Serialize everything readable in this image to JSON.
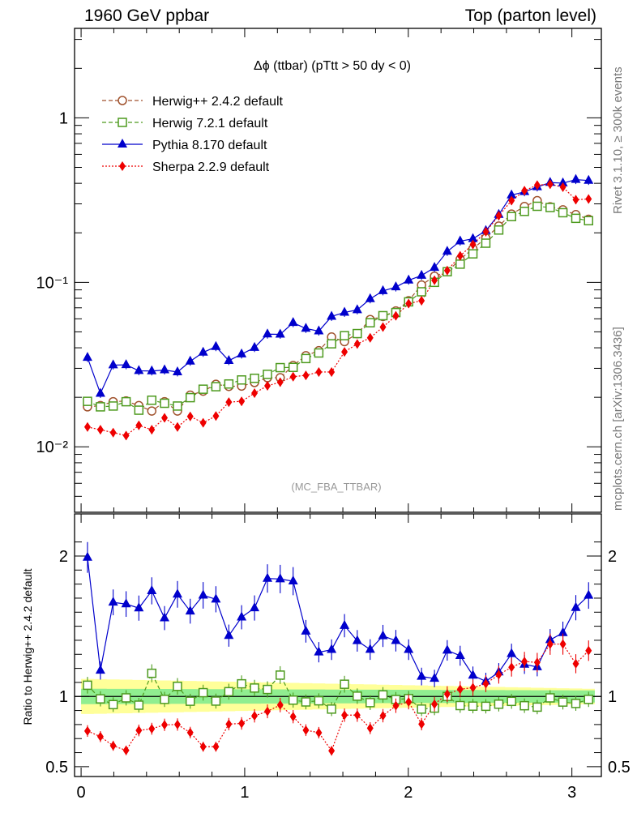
{
  "header": {
    "left": "1960 GeV ppbar",
    "right": "Top (parton level)"
  },
  "side_labels": {
    "rivet": "Rivet 3.1.10, ≥ 300k events",
    "mcplots": "mcplots.cern.ch [arXiv:1306.3436]"
  },
  "chart_data": [
    {
      "panel": "main",
      "type": "scatter",
      "title": "Δϕ (ttbar) (pTtt > 50 dy < 0)",
      "watermark": "(MC_FBA_TTBAR)",
      "yscale": "log",
      "ylim": [
        0.004,
        3.5
      ],
      "xlim": [
        -0.04,
        3.18
      ],
      "y_tick_labels": [
        "10⁻²",
        "10⁻¹",
        "1"
      ],
      "legend_position": "top-left",
      "x": [
        0.039,
        0.118,
        0.196,
        0.275,
        0.353,
        0.432,
        0.51,
        0.589,
        0.667,
        0.746,
        0.824,
        0.903,
        0.981,
        1.06,
        1.139,
        1.217,
        1.296,
        1.374,
        1.453,
        1.531,
        1.61,
        1.688,
        1.767,
        1.845,
        1.924,
        2.002,
        2.081,
        2.16,
        2.238,
        2.317,
        2.395,
        2.474,
        2.553,
        2.631,
        2.71,
        2.788,
        2.867,
        2.945,
        3.024,
        3.102
      ],
      "series": [
        {
          "name": "Herwig++ 2.4.2 default",
          "color": "#a0522d",
          "marker": "open-circle",
          "line": "dashed",
          "values": [
            0.0175,
            0.0178,
            0.0188,
            0.019,
            0.0178,
            0.0165,
            0.0188,
            0.0165,
            0.0206,
            0.0218,
            0.024,
            0.0233,
            0.0234,
            0.0246,
            0.0263,
            0.0263,
            0.0312,
            0.0358,
            0.0384,
            0.0465,
            0.0436,
            0.0487,
            0.0594,
            0.062,
            0.067,
            0.0773,
            0.0963,
            0.109,
            0.116,
            0.138,
            0.16,
            0.186,
            0.22,
            0.26,
            0.289,
            0.314,
            0.288,
            0.276,
            0.258,
            0.242
          ]
        },
        {
          "name": "Herwig 7.2.1 default",
          "color": "#4d9a1e",
          "marker": "open-square",
          "line": "dashed",
          "values": [
            0.0189,
            0.0175,
            0.0177,
            0.0188,
            0.0167,
            0.0192,
            0.0184,
            0.0177,
            0.0199,
            0.0224,
            0.0232,
            0.0241,
            0.0255,
            0.0261,
            0.0276,
            0.0303,
            0.0304,
            0.0344,
            0.0372,
            0.0423,
            0.0474,
            0.0488,
            0.0568,
            0.0627,
            0.0655,
            0.0761,
            0.0876,
            0.1,
            0.116,
            0.129,
            0.149,
            0.173,
            0.208,
            0.251,
            0.27,
            0.29,
            0.285,
            0.265,
            0.245,
            0.237
          ]
        },
        {
          "name": "Pythia 8.170 default",
          "color": "#0000cc",
          "marker": "filled-triangle",
          "line": "solid",
          "values": [
            0.0349,
            0.0211,
            0.0314,
            0.0315,
            0.029,
            0.0289,
            0.0293,
            0.0285,
            0.0331,
            0.0375,
            0.0406,
            0.0334,
            0.0366,
            0.0401,
            0.0484,
            0.0483,
            0.0568,
            0.0524,
            0.0505,
            0.062,
            0.0656,
            0.068,
            0.0793,
            0.0887,
            0.0936,
            0.103,
            0.11,
            0.123,
            0.154,
            0.178,
            0.184,
            0.206,
            0.258,
            0.339,
            0.355,
            0.38,
            0.404,
            0.401,
            0.421,
            0.416
          ]
        },
        {
          "name": "Sherpa 2.2.9 default",
          "color": "#ee0000",
          "marker": "filled-diamond",
          "line": "dotted",
          "values": [
            0.0132,
            0.0127,
            0.0122,
            0.0117,
            0.0135,
            0.0127,
            0.015,
            0.0132,
            0.0153,
            0.014,
            0.0154,
            0.0187,
            0.0189,
            0.0212,
            0.0235,
            0.0247,
            0.0267,
            0.0272,
            0.0285,
            0.0285,
            0.0378,
            0.0422,
            0.046,
            0.0535,
            0.0626,
            0.0743,
            0.0773,
            0.103,
            0.118,
            0.145,
            0.17,
            0.203,
            0.254,
            0.314,
            0.361,
            0.39,
            0.395,
            0.379,
            0.318,
            0.321
          ]
        }
      ]
    },
    {
      "panel": "ratio",
      "type": "line",
      "ylabel": "Ratio to Herwig++ 2.4.2 default",
      "ylim": [
        0.43,
        2.3
      ],
      "xlim": [
        -0.04,
        3.18
      ],
      "x_ticks": [
        0,
        1,
        2,
        3
      ],
      "y_ticks": [
        0.5,
        1,
        2
      ],
      "reference_bands": {
        "inner_color": "#90ee90",
        "outer_color": "#ffff99",
        "inner_halfwidth": [
          0.055,
          0.043
        ],
        "outer_halfwidth": [
          0.125,
          0.055
        ]
      },
      "series": [
        {
          "name": "Herwig 7.2.1 default",
          "color": "#4d9a1e",
          "values": [
            1.08,
            0.983,
            0.942,
            0.99,
            0.938,
            1.165,
            0.979,
            1.072,
            0.966,
            1.027,
            0.967,
            1.034,
            1.09,
            1.06,
            1.05,
            1.152,
            0.974,
            0.961,
            0.969,
            0.91,
            1.087,
            1.002,
            0.956,
            1.011,
            0.978,
            0.985,
            0.91,
            0.917,
            1.0,
            0.935,
            0.931,
            0.93,
            0.945,
            0.965,
            0.934,
            0.924,
            0.99,
            0.96,
            0.95,
            0.979
          ]
        },
        {
          "name": "Pythia 8.170 default",
          "color": "#0000cc",
          "values": [
            1.99,
            1.185,
            1.67,
            1.658,
            1.629,
            1.752,
            1.558,
            1.727,
            1.607,
            1.72,
            1.692,
            1.433,
            1.564,
            1.63,
            1.84,
            1.836,
            1.821,
            1.464,
            1.315,
            1.333,
            1.504,
            1.396,
            1.334,
            1.431,
            1.397,
            1.333,
            1.142,
            1.128,
            1.328,
            1.29,
            1.15,
            1.108,
            1.173,
            1.304,
            1.228,
            1.21,
            1.403,
            1.453,
            1.632,
            1.719
          ]
        },
        {
          "name": "Sherpa 2.2.9 default",
          "color": "#ee0000",
          "values": [
            0.754,
            0.714,
            0.649,
            0.616,
            0.758,
            0.77,
            0.798,
            0.8,
            0.743,
            0.642,
            0.642,
            0.803,
            0.808,
            0.862,
            0.894,
            0.939,
            0.856,
            0.76,
            0.742,
            0.613,
            0.867,
            0.867,
            0.774,
            0.863,
            0.934,
            0.961,
            0.803,
            0.945,
            1.017,
            1.051,
            1.063,
            1.091,
            1.155,
            1.208,
            1.249,
            1.242,
            1.372,
            1.373,
            1.233,
            1.326
          ]
        }
      ]
    }
  ]
}
